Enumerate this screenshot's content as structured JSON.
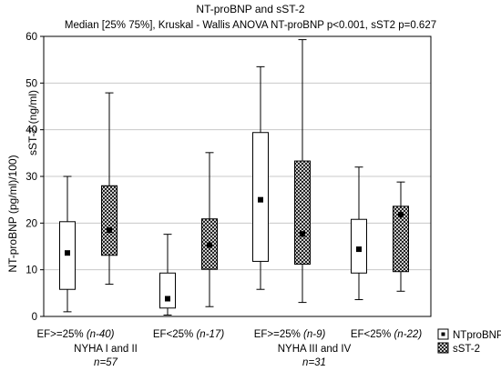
{
  "chart_data": {
    "type": "box",
    "title": "NT-proBNP and sST-2",
    "subtitle": "Median [25% 75%], Kruskal - Wallis ANOVA NT-proBNP p<0.001, sST2 p=0.627",
    "ylabel_sst2": "sST-2  (ng/ml)",
    "ylabel_ntprobnp": "NT-proBNP (pg/ml)/100)",
    "ylim": [
      0,
      60
    ],
    "yticks": [
      "0",
      "10",
      "20",
      "30",
      "40",
      "50",
      "60"
    ],
    "grid": true,
    "legend_placement": "bottom-right",
    "groups": [
      {
        "label": "EF>=25% ",
        "n": "(n-40)"
      },
      {
        "label": "EF<25% ",
        "n": "(n-17)"
      },
      {
        "label": "EF>=25% ",
        "n": "(n-9)"
      },
      {
        "label": "EF<25% ",
        "n": "(n-22)"
      }
    ],
    "sections": [
      {
        "label": "NYHA I and II",
        "n": "n=57"
      },
      {
        "label": "NYHA III and IV",
        "n": "n=31"
      }
    ],
    "series": [
      {
        "name": "NTproBNP",
        "pattern": "plain",
        "boxes": [
          {
            "min": 1.0,
            "q1": 5.8,
            "median": 13.6,
            "q3": 20.3,
            "max": 30.0
          },
          {
            "min": 0.3,
            "q1": 1.8,
            "median": 3.8,
            "q3": 9.3,
            "max": 17.6
          },
          {
            "min": 5.8,
            "q1": 11.8,
            "median": 25.0,
            "q3": 39.4,
            "max": 53.5
          },
          {
            "min": 3.6,
            "q1": 9.3,
            "median": 14.4,
            "q3": 20.8,
            "max": 32.0
          }
        ]
      },
      {
        "name": "sST-2",
        "pattern": "crosshatch",
        "boxes": [
          {
            "min": 6.9,
            "q1": 13.1,
            "median": 18.5,
            "q3": 28.0,
            "max": 47.9
          },
          {
            "min": 2.1,
            "q1": 10.1,
            "median": 15.3,
            "q3": 20.9,
            "max": 35.1
          },
          {
            "min": 3.0,
            "q1": 11.2,
            "median": 17.7,
            "q3": 33.3,
            "max": 59.3
          },
          {
            "min": 5.4,
            "q1": 9.6,
            "median": 21.8,
            "q3": 23.6,
            "max": 28.8
          }
        ]
      }
    ]
  }
}
